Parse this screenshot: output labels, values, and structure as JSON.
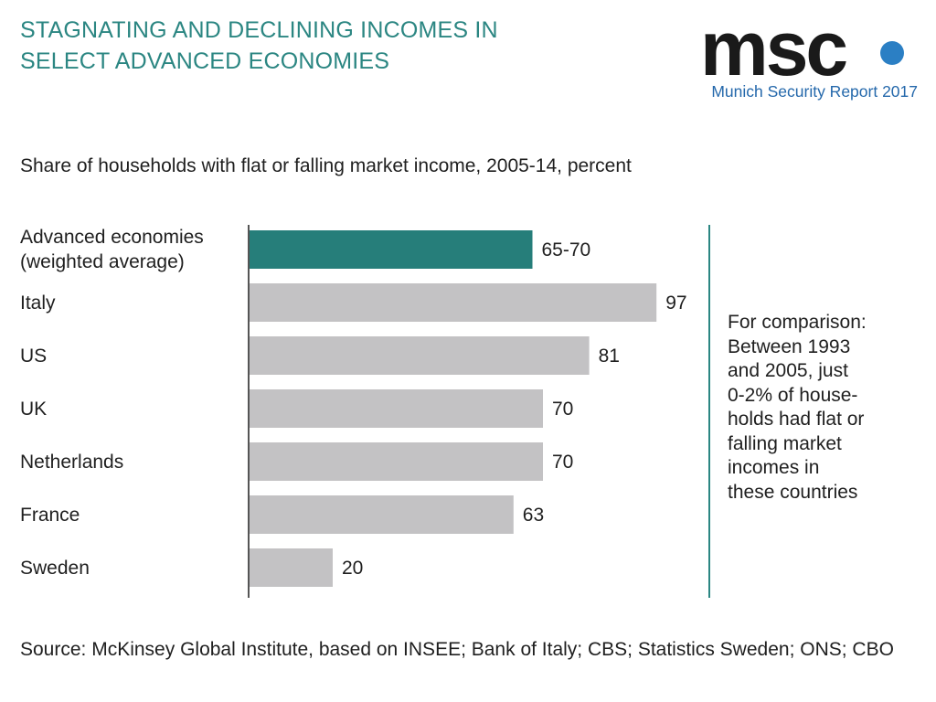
{
  "header": {
    "title_line1": "STAGNATING AND DECLINING INCOMES IN",
    "title_line2": "SELECT ADVANCED ECONOMIES"
  },
  "logo": {
    "wordmark": "msc",
    "subtitle": "Munich Security Report 2017",
    "colors": {
      "wordmark": "#1a1a1a",
      "dot": "#2b7fc4",
      "subtitle": "#2468ab"
    }
  },
  "chart_data": {
    "type": "bar",
    "orientation": "horizontal",
    "title": "Share of households with flat or falling market income, 2005-14, percent",
    "categories": [
      "Advanced economies (weighted average)",
      "Italy",
      "US",
      "UK",
      "Netherlands",
      "France",
      "Sweden"
    ],
    "category_lines": [
      [
        "Advanced economies",
        "(weighted average)"
      ],
      [
        "Italy"
      ],
      [
        "US"
      ],
      [
        "UK"
      ],
      [
        "Netherlands"
      ],
      [
        "France"
      ],
      [
        "Sweden"
      ]
    ],
    "values": [
      67.5,
      97,
      81,
      70,
      70,
      63,
      20
    ],
    "value_labels": [
      "65-70",
      "97",
      "81",
      "70",
      "70",
      "63",
      "20"
    ],
    "highlight_index": 0,
    "colors": {
      "highlight": "#267e7a",
      "default": "#c3c2c4",
      "axis": "#555555",
      "separator": "#2b8682"
    },
    "xlim": [
      0,
      100
    ],
    "grid": false,
    "legend": "none"
  },
  "note": {
    "text": "For comparison:\nBetween 1993\nand 2005, just\n0-2% of house-\nholds had flat or\nfalling market\nincomes in\nthese countries"
  },
  "source": {
    "text": "Source: McKinsey Global Institute, based on INSEE; Bank of Italy; CBS; Statistics Sweden; ONS; CBO"
  }
}
